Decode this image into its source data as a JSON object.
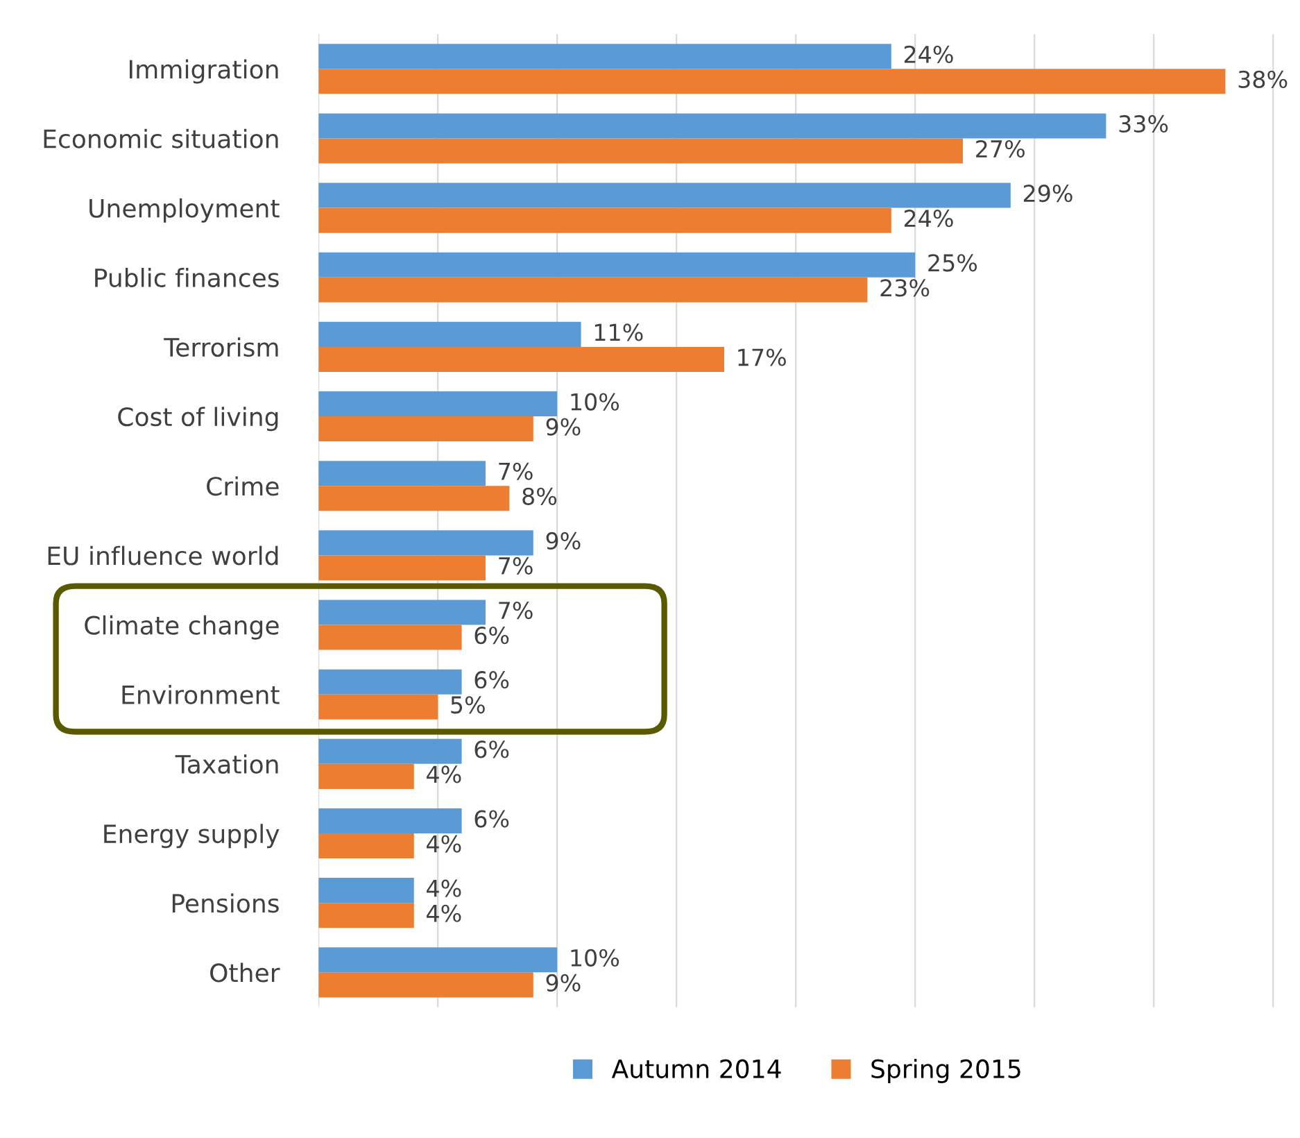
{
  "chart_data": {
    "type": "bar",
    "orientation": "horizontal",
    "categories": [
      "Immigration",
      "Economic situation",
      "Unemployment",
      "Public finances",
      "Terrorism",
      "Cost of living",
      "Crime",
      "EU influence world",
      "Climate change",
      "Environment",
      "Taxation",
      "Energy supply",
      "Pensions",
      "Other"
    ],
    "series": [
      {
        "name": "Autumn 2014",
        "color": "#5b9bd5",
        "values": [
          24,
          33,
          29,
          25,
          11,
          10,
          7,
          9,
          7,
          6,
          6,
          6,
          4,
          10
        ],
        "value_labels": [
          "24%",
          "33%",
          "29%",
          "25%",
          "11%",
          "10%",
          "7%",
          "9%",
          "7%",
          "6%",
          "6%",
          "6%",
          "4%",
          "10%"
        ]
      },
      {
        "name": "Spring 2015",
        "color": "#ed7d31",
        "values": [
          38,
          27,
          24,
          23,
          17,
          9,
          8,
          7,
          6,
          5,
          4,
          4,
          4,
          9
        ],
        "value_labels": [
          "38%",
          "27%",
          "24%",
          "23%",
          "17%",
          "9%",
          "8%",
          "7%",
          "6%",
          "5%",
          "4%",
          "4%",
          "4%",
          "9%"
        ]
      }
    ],
    "xlim": [
      0,
      40.2
    ],
    "xticks": [
      {
        "value": 0,
        "label": null
      },
      {
        "value": 5,
        "label": null
      },
      {
        "value": 10,
        "label": null
      },
      {
        "value": 15,
        "label": null
      },
      {
        "value": 20,
        "label": null
      },
      {
        "value": 25,
        "label": null
      },
      {
        "value": 30,
        "label": null
      },
      {
        "value": 35,
        "label": null
      },
      {
        "value": 40,
        "label": null
      }
    ],
    "tick_labels": "y",
    "grid": "x",
    "legend": "bottom"
  }
}
